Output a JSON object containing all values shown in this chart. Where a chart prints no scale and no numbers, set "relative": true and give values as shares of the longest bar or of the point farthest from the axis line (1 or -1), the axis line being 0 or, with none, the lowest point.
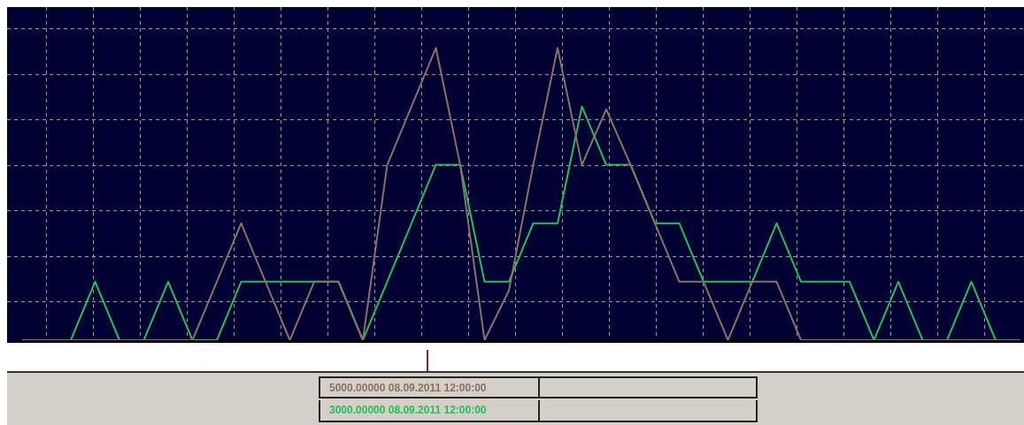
{
  "chart_data": {
    "type": "line",
    "relative": true,
    "grid": true,
    "legend": false,
    "marker": "none",
    "line_style": "solid",
    "categories": [
      null,
      null,
      null,
      null,
      null,
      null,
      null,
      null,
      null,
      null,
      null,
      null,
      null,
      null,
      null,
      null,
      null,
      null,
      null,
      null,
      null,
      null,
      null,
      null,
      null,
      null,
      null,
      null,
      null,
      null,
      null,
      null,
      null,
      null,
      null,
      null,
      null,
      null,
      null,
      null,
      null,
      null
    ],
    "series": [
      {
        "color": "#8c7064",
        "values": [
          0,
          0,
          0,
          0,
          0,
          0,
          0,
          0,
          0.2,
          0.4,
          0.2,
          0,
          0.2,
          0.2,
          0,
          0.6,
          0.8,
          1,
          0.6,
          0,
          0.17,
          0.6,
          1,
          0.6,
          0.79,
          0.6,
          0.4,
          0.2,
          0.2,
          0,
          0.2,
          0.2,
          0,
          0,
          0,
          0,
          0,
          0,
          0,
          0,
          0,
          0
        ]
      },
      {
        "color": "#22c05a",
        "values": [
          0,
          0,
          0,
          0.2,
          0,
          0,
          0.2,
          0,
          0,
          0.2,
          0.2,
          0.2,
          0.2,
          0.2,
          0,
          0.2,
          0.4,
          0.6,
          0.6,
          0.2,
          0.2,
          0.4,
          0.4,
          0.8,
          0.6,
          0.6,
          0.4,
          0.4,
          0.2,
          0.2,
          0.2,
          0.4,
          0.2,
          0.2,
          0.2,
          0,
          0.2,
          0,
          0,
          0.2,
          0,
          0
        ]
      }
    ],
    "annotations": [
      "5000.00000 08.09.2011 12:00:00",
      "3000.00000 08.09.2011 12:00:00"
    ]
  }
}
